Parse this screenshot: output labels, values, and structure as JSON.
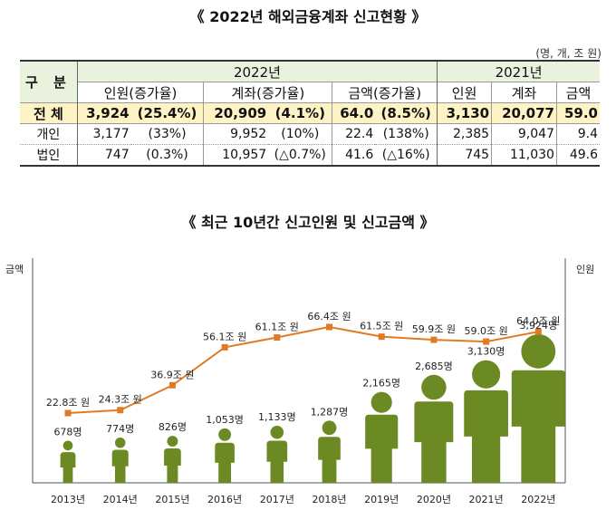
{
  "title": "《 2022년 해외금융계좌 신고현황 》",
  "unit": "(명, 개, 조 원)",
  "table": {
    "gubun": "구 분",
    "year_current": "2022년",
    "year_prev": "2021년",
    "col_person": "인원(증가율)",
    "col_account": "계좌(증가율)",
    "col_amount": "금액(증가율)",
    "col_person_prev": "인원",
    "col_account_prev": "계좌",
    "col_amount_prev": "금액",
    "rows": [
      {
        "label": "전 체",
        "p": "3,924",
        "pr": "(25.4%)",
        "a": "20,909",
        "ar": "(4.1%)",
        "m": "64.0",
        "mr": "(8.5%)",
        "pp": "3,130",
        "ap": "20,077",
        "mp": "59.0"
      },
      {
        "label": "개인",
        "p": "3,177",
        "pr": "(33%)",
        "a": "9,952",
        "ar": "(10%)",
        "m": "22.4",
        "mr": "(138%)",
        "pp": "2,385",
        "ap": "9,047",
        "mp": "9.4"
      },
      {
        "label": "법인",
        "p": "747",
        "pr": "(0.3%)",
        "a": "10,957",
        "ar": "(△0.7%)",
        "m": "41.6",
        "mr": "(△16%)",
        "pp": "745",
        "ap": "11,030",
        "mp": "49.6"
      }
    ]
  },
  "chart_data": {
    "type": "line",
    "title": "《 최근 10년간 신고인원 및 신고금액 》",
    "left_axis_label": "금액",
    "right_axis_label": "인원",
    "x": [
      "2013년",
      "2014년",
      "2015년",
      "2016년",
      "2017년",
      "2018년",
      "2019년",
      "2020년",
      "2021년",
      "2022년"
    ],
    "series": [
      {
        "values": [
          22.8,
          24.3,
          36.9,
          56.1,
          61.1,
          66.4,
          61.5,
          59.9,
          59.0,
          64.0
        ],
        "labels": [
          "22.8조 원",
          "24.3조 원",
          "36.9조 원",
          "56.1조 원",
          "61.1조 원",
          "66.4조 원",
          "61.5조 원",
          "59.9조 원",
          "59.0조 원",
          "64.0조 원"
        ],
        "color": "#e07b24"
      },
      {
        "values": [
          678,
          774,
          826,
          1053,
          1133,
          1287,
          2165,
          2685,
          3130,
          3924
        ],
        "labels": [
          "678명",
          "774명",
          "826명",
          "1,053명",
          "1,133명",
          "1,287명",
          "2,165명",
          "2,685명",
          "3,130명",
          "3,924명"
        ],
        "color": "#6b8a23"
      }
    ],
    "grid": false
  }
}
